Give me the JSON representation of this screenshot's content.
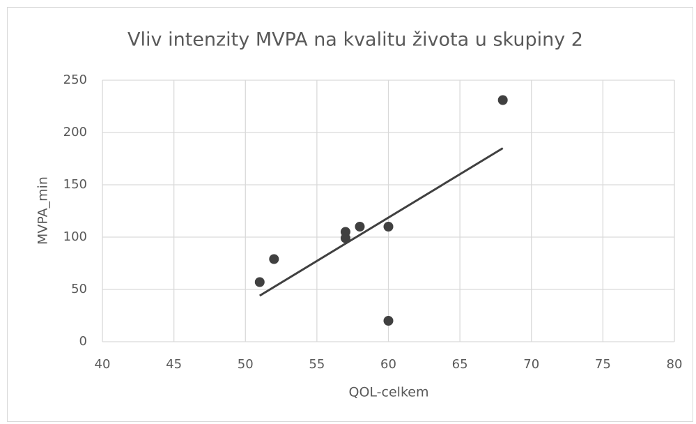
{
  "chart_data": {
    "type": "scatter",
    "title": "Vliv intenzity MVPA na kvalitu života u skupiny 2",
    "x_label": "QOL-celkem",
    "y_label": "MVPA_min",
    "series": [
      {
        "name": "MVPA_min",
        "color": "#404040",
        "x": [
          51,
          52,
          57,
          57,
          58,
          60,
          60,
          68
        ],
        "values": [
          57,
          79,
          105,
          99,
          110,
          110,
          20,
          231
        ]
      }
    ],
    "trendline": {
      "color": "#404040",
      "x": [
        51,
        68
      ],
      "values": [
        44,
        185
      ]
    },
    "xlim": [
      40,
      80
    ],
    "xticks": [
      40,
      45,
      50,
      55,
      60,
      65,
      70,
      75,
      80
    ],
    "ylim": [
      0,
      250
    ],
    "yticks": [
      0,
      50,
      100,
      150,
      200,
      250
    ],
    "grid": true
  }
}
